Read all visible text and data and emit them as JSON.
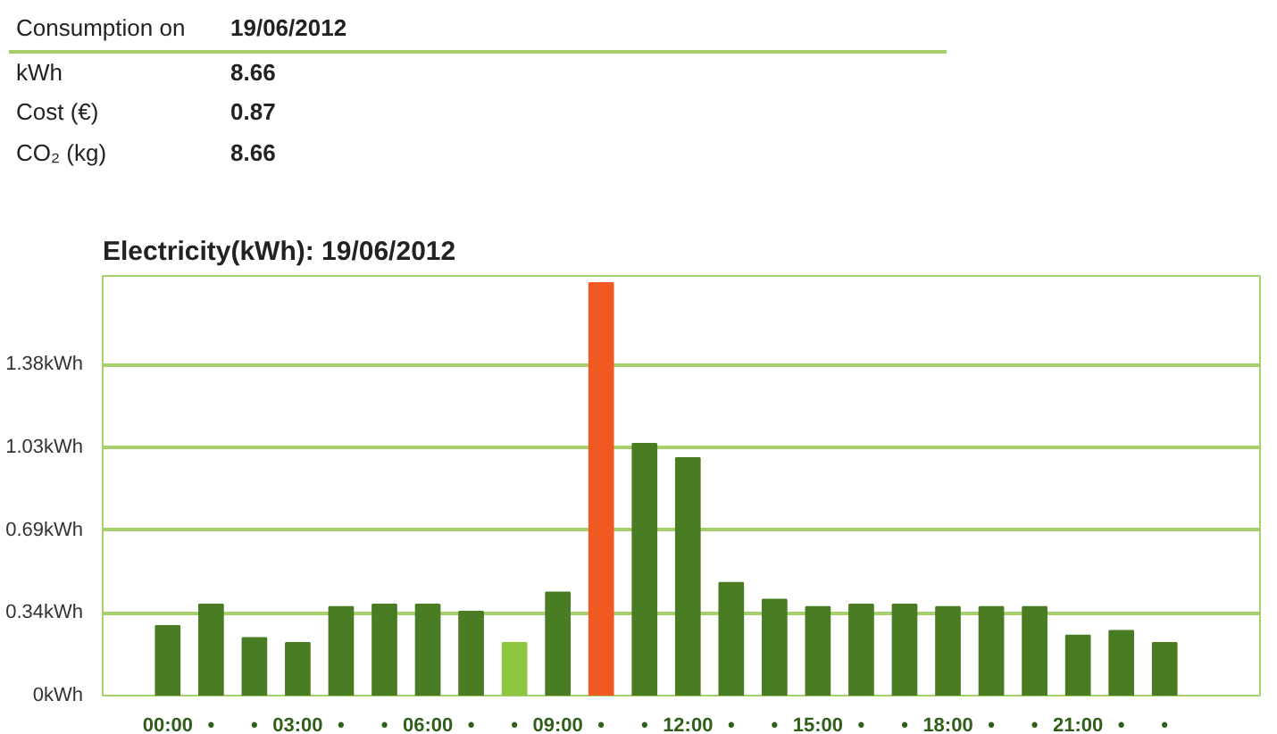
{
  "chart_data": {
    "type": "bar",
    "title": "Electricity(kWh): 19/06/2012",
    "annotations": [
      "Consumption on",
      "19/06/2012",
      "kWh",
      "8.66",
      "Cost (€)",
      "0.87",
      "CO₂ (kg)",
      "8.66"
    ],
    "categories": [
      "00:00",
      "•",
      "•",
      "03:00",
      "•",
      "•",
      "06:00",
      "•",
      "•",
      "09:00",
      "•",
      "•",
      "12:00",
      "•",
      "•",
      "15:00",
      "•",
      "•",
      "18:00",
      "•",
      "•",
      "21:00",
      "•",
      "•"
    ],
    "values": [
      0.29,
      0.38,
      0.24,
      0.22,
      0.37,
      0.38,
      0.38,
      0.35,
      0.22,
      0.43,
      1.72,
      1.05,
      0.99,
      0.47,
      0.4,
      0.37,
      0.38,
      0.38,
      0.37,
      0.37,
      0.37,
      0.25,
      0.27,
      0.22
    ],
    "colors": [
      "#4a7c23",
      "#4a7c23",
      "#4a7c23",
      "#4a7c23",
      "#4a7c23",
      "#4a7c23",
      "#4a7c23",
      "#4a7c23",
      "#8dc63f",
      "#4a7c23",
      "#f05a22",
      "#4a7c23",
      "#4a7c23",
      "#4a7c23",
      "#4a7c23",
      "#4a7c23",
      "#4a7c23",
      "#4a7c23",
      "#4a7c23",
      "#4a7c23",
      "#4a7c23",
      "#4a7c23",
      "#4a7c23",
      "#4a7c23"
    ],
    "ylim": [
      0,
      1.75
    ],
    "yticks": [
      {
        "value": 0,
        "label": "0kWh"
      },
      {
        "value": 0.345,
        "label": "0.34kWh"
      },
      {
        "value": 0.69,
        "label": "0.69kWh"
      },
      {
        "value": 1.035,
        "label": "1.03kWh"
      },
      {
        "value": 1.38,
        "label": "1.38kWh"
      }
    ],
    "grid": "y"
  }
}
